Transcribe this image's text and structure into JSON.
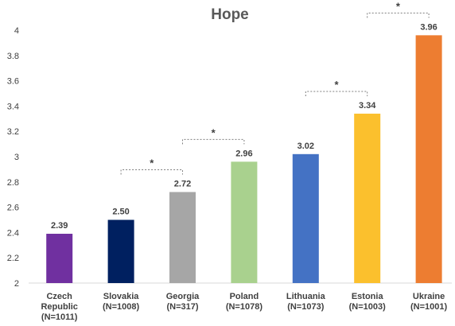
{
  "chart_data": {
    "type": "bar",
    "title": "Hope",
    "xlabel": "",
    "ylabel": "",
    "ylim": [
      2,
      4
    ],
    "yticks": [
      "2",
      "2.2",
      "2.4",
      "2.6",
      "2.8",
      "3",
      "3.2",
      "3.4",
      "3.6",
      "3.8",
      "4"
    ],
    "grid": false,
    "categories": [
      {
        "lines": [
          "Czech",
          "Republic",
          "(N=1011)"
        ]
      },
      {
        "lines": [
          "Slovakia",
          "(N=1008)"
        ]
      },
      {
        "lines": [
          "Georgia",
          "(N=317)"
        ]
      },
      {
        "lines": [
          "Poland",
          "(N=1078)"
        ]
      },
      {
        "lines": [
          "Lithuania",
          "(N=1073)"
        ]
      },
      {
        "lines": [
          "Estonia",
          "(N=1003)"
        ]
      },
      {
        "lines": [
          "Ukraine",
          "(N=1001)"
        ]
      }
    ],
    "values": [
      2.39,
      2.5,
      2.72,
      2.96,
      3.02,
      3.34,
      3.96
    ],
    "data_labels": [
      "2.39",
      "2.50",
      "2.72",
      "2.96",
      "3.02",
      "3.34",
      "3.96"
    ],
    "colors": [
      "#7030a0",
      "#002060",
      "#a6a6a6",
      "#a9d18e",
      "#4472c4",
      "#fbc02d",
      "#ed7d31"
    ],
    "significance": [
      {
        "from": 1,
        "to": 2,
        "label": "*"
      },
      {
        "from": 2,
        "to": 3,
        "label": "*"
      },
      {
        "from": 4,
        "to": 5,
        "label": "*"
      },
      {
        "from": 5,
        "to": 6,
        "label": "*"
      }
    ]
  }
}
